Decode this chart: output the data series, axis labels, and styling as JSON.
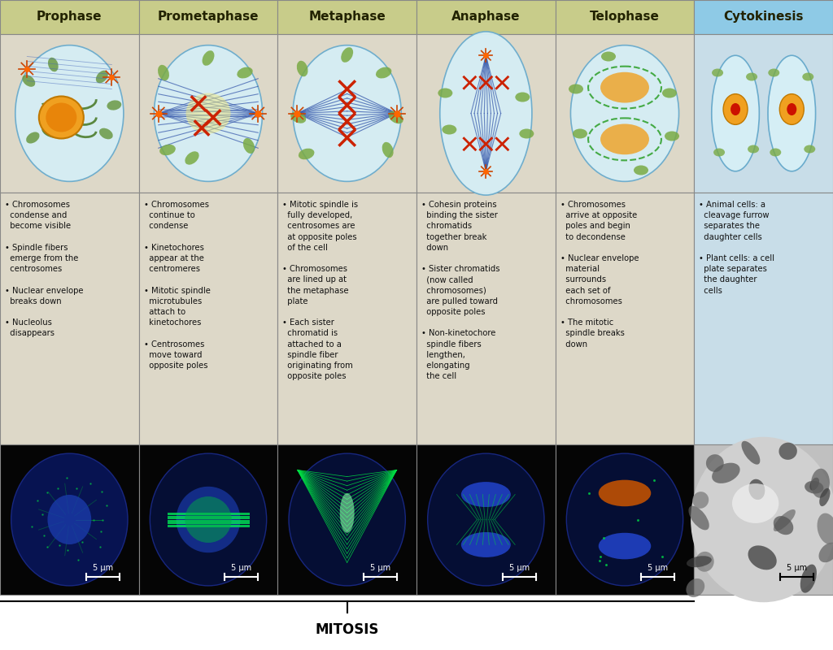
{
  "headers": [
    "Prophase",
    "Prometaphase",
    "Metaphase",
    "Anaphase",
    "Telophase",
    "Cytokinesis"
  ],
  "header_bg_first5": "#c8cc8a",
  "header_bg_last": "#8ecae6",
  "header_text_color": "#222200",
  "body_bg_color": "#ddd8c8",
  "cytokinesis_bg_color": "#c8dde8",
  "diagram_bg_first5": "#ddd8c8",
  "diagram_bg_last": "#c8dde8",
  "cell_fill": "#d8eef5",
  "cell_edge": "#7ab0cc",
  "border_color": "#888888",
  "bullet_texts": [
    [
      "Chromosomes\ncondense and\nbecome visible",
      "Spindle fibers\nemerge from the\ncentrosomes",
      "Nuclear envelope\nbreaks down",
      "Nucleolus\ndisappears"
    ],
    [
      "Chromosomes\ncontinue to\ncondense",
      "Kinetochores\nappear at the\ncentromeres",
      "Mitotic spindle\nmicrotubules\nattach to\nkinetochores",
      "Centrosomes\nmove toward\nopposite poles"
    ],
    [
      "Mitotic spindle is\nfully developed,\ncentrosomes are\nat opposite poles\nof the cell",
      "Chromosomes\nare lined up at\nthe metaphase\nplate",
      "Each sister\nchromatid is\nattached to a\nspindle fiber\noriginating from\nopposite poles"
    ],
    [
      "Cohesin proteins\nbinding the sister\nchromatids\ntogether break\ndown",
      "Sister chromatids\n(now called\nchromosomes)\nare pulled toward\nopposite poles",
      "Non-kinetochore\nspindle fibers\nlengthen,\nelongating\nthe cell"
    ],
    [
      "Chromosomes\narrive at opposite\npoles and begin\nto decondense",
      "Nuclear envelope\nmaterial\nsurrounds\neach set of\nchromosomes",
      "The mitotic\nspindle breaks\ndown"
    ],
    [
      "Animal cells: a\ncleavage furrow\nseparates the\ndaughter cells",
      "Plant cells: a cell\nplate separates\nthe daughter\ncells"
    ]
  ],
  "scale_bar_text": "5 μm",
  "mitosis_label": "MITOSIS",
  "figure_bg": "#ffffff"
}
